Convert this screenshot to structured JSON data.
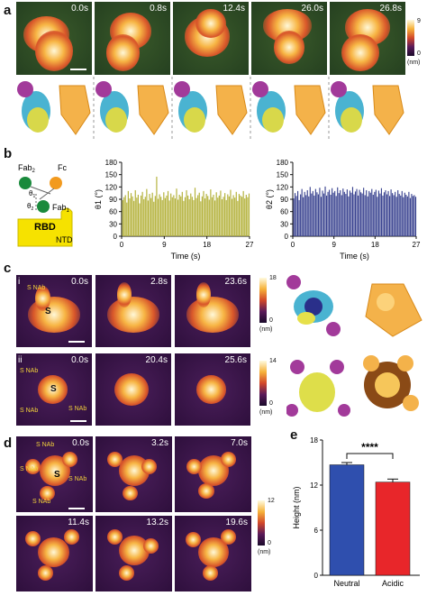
{
  "panels": {
    "a": "a",
    "b": "b",
    "c": "c",
    "d": "d",
    "e": "e"
  },
  "a": {
    "times": [
      "0.0s",
      "0.8s",
      "12.4s",
      "26.0s",
      "26.8s"
    ],
    "colorbar": {
      "max": "9",
      "min": "0",
      "unit": "(nm)"
    }
  },
  "b": {
    "schematic": {
      "fab2": "Fab",
      "fab2_sub": "2",
      "fc": "Fc",
      "theta1": "θ",
      "theta1_sub": "1",
      "theta2": "θ",
      "theta2_sub": "2",
      "fab1": "Fab",
      "fab1_sub": "1",
      "rbd": "RBD",
      "ntd": "NTD"
    },
    "xlabel": "Time (s)"
  },
  "c": {
    "i": {
      "label": "i",
      "times": [
        "0.0s",
        "2.8s",
        "23.6s"
      ],
      "nab": "S NAb",
      "s": "S",
      "colorbar": {
        "max": "18",
        "min": "0",
        "unit": "(nm)"
      }
    },
    "ii": {
      "label": "ii",
      "times": [
        "0.0s",
        "20.4s",
        "25.6s"
      ],
      "nab": "S NAb",
      "s": "S",
      "colorbar": {
        "max": "14",
        "min": "0",
        "unit": "(nm)"
      }
    }
  },
  "d": {
    "times": [
      "0.0s",
      "3.2s",
      "7.0s",
      "11.4s",
      "13.2s",
      "19.6s"
    ],
    "nab": "S NAb",
    "s": "S",
    "colorbar": {
      "max": "12",
      "min": "0",
      "unit": "(nm)"
    }
  },
  "e": {
    "significance": "****"
  },
  "chart_data": [
    {
      "type": "bar",
      "ylabel": "θ1 (°)",
      "xlabel": "Time (s)",
      "ylim": [
        0,
        180
      ],
      "xlim": [
        0,
        27
      ],
      "yticks": [
        0,
        30,
        60,
        90,
        120,
        150,
        180
      ],
      "xticks": [
        0,
        9,
        18,
        27
      ],
      "color": "#b4b23c",
      "x": [
        0.2,
        0.5,
        0.8,
        1.1,
        1.4,
        1.7,
        2.0,
        2.3,
        2.6,
        2.9,
        3.2,
        3.5,
        3.8,
        4.1,
        4.4,
        4.7,
        5.0,
        5.3,
        5.6,
        5.9,
        6.2,
        6.5,
        6.8,
        7.1,
        7.4,
        7.7,
        8.0,
        8.3,
        8.6,
        8.9,
        9.2,
        9.5,
        9.8,
        10.1,
        10.4,
        10.7,
        11.0,
        11.3,
        11.6,
        11.9,
        12.2,
        12.5,
        12.8,
        13.1,
        13.4,
        13.7,
        14.0,
        14.3,
        14.6,
        14.9,
        15.2,
        15.5,
        15.8,
        16.1,
        16.4,
        16.7,
        17.0,
        17.3,
        17.6,
        17.9,
        18.2,
        18.5,
        18.8,
        19.1,
        19.4,
        19.7,
        20.0,
        20.3,
        20.6,
        20.9,
        21.2,
        21.5,
        21.8,
        22.1,
        22.4,
        22.7,
        23.0,
        23.3,
        23.6,
        23.9,
        24.2,
        24.5,
        24.8,
        25.1,
        25.4,
        25.7,
        26.0,
        26.3,
        26.6,
        26.9
      ],
      "values": [
        88,
        95,
        100,
        82,
        110,
        92,
        105,
        97,
        86,
        112,
        94,
        101,
        80,
        99,
        108,
        90,
        96,
        115,
        87,
        103,
        93,
        106,
        84,
        98,
        145,
        91,
        102,
        96,
        88,
        107,
        93,
        99,
        110,
        87,
        104,
        95,
        100,
        92,
        116,
        89,
        101,
        97,
        108,
        86,
        95,
        112,
        99,
        90,
        104,
        96,
        88,
        118,
        93,
        100,
        106,
        85,
        97,
        110,
        92,
        103,
        98,
        89,
        114,
        95,
        101,
        87,
        107,
        94,
        99,
        111,
        90,
        96,
        105,
        88,
        102,
        97,
        113,
        91,
        100,
        94,
        108,
        86,
        103,
        99,
        96,
        110,
        92,
        101,
        95,
        104
      ]
    },
    {
      "type": "bar",
      "ylabel": "θ2 (°)",
      "xlabel": "Time (s)",
      "ylim": [
        0,
        180
      ],
      "xlim": [
        0,
        27
      ],
      "yticks": [
        0,
        30,
        60,
        90,
        120,
        150,
        180
      ],
      "xticks": [
        0,
        9,
        18,
        27
      ],
      "color": "#3a4390",
      "x": [
        0.2,
        0.5,
        0.8,
        1.1,
        1.4,
        1.7,
        2.0,
        2.3,
        2.6,
        2.9,
        3.2,
        3.5,
        3.8,
        4.1,
        4.4,
        4.7,
        5.0,
        5.3,
        5.6,
        5.9,
        6.2,
        6.5,
        6.8,
        7.1,
        7.4,
        7.7,
        8.0,
        8.3,
        8.6,
        8.9,
        9.2,
        9.5,
        9.8,
        10.1,
        10.4,
        10.7,
        11.0,
        11.3,
        11.6,
        11.9,
        12.2,
        12.5,
        12.8,
        13.1,
        13.4,
        13.7,
        14.0,
        14.3,
        14.6,
        14.9,
        15.2,
        15.5,
        15.8,
        16.1,
        16.4,
        16.7,
        17.0,
        17.3,
        17.6,
        17.9,
        18.2,
        18.5,
        18.8,
        19.1,
        19.4,
        19.7,
        20.0,
        20.3,
        20.6,
        20.9,
        21.2,
        21.5,
        21.8,
        22.1,
        22.4,
        22.7,
        23.0,
        23.3,
        23.6,
        23.9,
        24.2,
        24.5,
        24.8,
        25.1,
        25.4,
        25.7,
        26.0,
        26.3,
        26.6,
        26.9
      ],
      "values": [
        92,
        105,
        98,
        110,
        88,
        102,
        115,
        95,
        108,
        100,
        112,
        97,
        120,
        104,
        110,
        99,
        115,
        107,
        102,
        118,
        96,
        111,
        104,
        121,
        99,
        108,
        113,
        101,
        117,
        106,
        110,
        98,
        119,
        105,
        112,
        100,
        116,
        108,
        103,
        114,
        97,
        111,
        106,
        120,
        102,
        109,
        115,
        99,
        113,
        107,
        104,
        118,
        100,
        112,
        97,
        110,
        106,
        115,
        101,
        108,
        113,
        96,
        111,
        104,
        117,
        99,
        107,
        112,
        102,
        110,
        98,
        114,
        105,
        100,
        108,
        96,
        112,
        103,
        99,
        110,
        95,
        106,
        101,
        97,
        108,
        93,
        103,
        98,
        100,
        96
      ]
    },
    {
      "type": "bar",
      "ylabel": "Height (nm)",
      "categories": [
        "Neutral",
        "Acidic"
      ],
      "values": [
        14.7,
        12.4
      ],
      "errors": [
        0.3,
        0.4
      ],
      "colors": [
        "#2f4fae",
        "#e8262a"
      ],
      "ylim": [
        0,
        18
      ],
      "yticks": [
        0,
        6,
        12,
        18
      ]
    }
  ]
}
